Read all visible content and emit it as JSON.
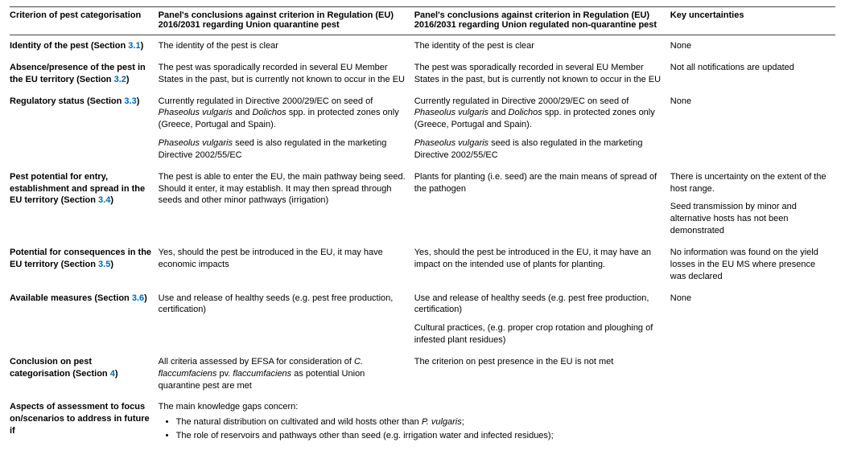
{
  "headers": {
    "c1": "Criterion of pest categorisation",
    "c2": "Panel's conclusions against criterion in Regulation (EU) 2016/2031 regarding Union quarantine pest",
    "c3": "Panel's conclusions against criterion in Regulation (EU) 2016/2031 regarding Union regulated non-quarantine pest",
    "c4": "Key uncertainties"
  },
  "rows": {
    "identity": {
      "label_a": "Identity of the pest (Section ",
      "sec": "3.1",
      "label_b": ")",
      "c2": "The identity of the pest is clear",
      "c3": "The identity of the pest is clear",
      "c4": "None"
    },
    "absence": {
      "label_a": "Absence/presence of the pest in the EU territory (Section ",
      "sec": "3.2",
      "label_b": ")",
      "c2": "The pest was sporadically recorded in several EU Member States in the past, but is currently not known to occur in the EU",
      "c3": "The pest was sporadically recorded in several EU Member States in the past, but is currently not known to occur in the EU",
      "c4": "Not all notifications are updated"
    },
    "regstatus": {
      "label_a": "Regulatory status (Section ",
      "sec": "3.3",
      "label_b": ")",
      "c2p1a": "Currently regulated in Directive 2000/29/EC on seed of ",
      "c2p1b": "Phaseolus vulgaris",
      "c2p1c": " and ",
      "c2p1d": "Dolichos",
      "c2p1e": " spp. in protected zones only (Greece, Portugal and Spain).",
      "c2p2a": "Phaseolus vulgaris",
      "c2p2b": " seed is also regulated in the marketing Directive 2002/55/EC",
      "c4": "None"
    },
    "potential": {
      "label_a": "Pest potential for entry, establishment and spread in the EU territory (Section ",
      "sec": "3.4",
      "label_b": ")",
      "c2": "The pest is able to enter the EU, the main pathway being seed. Should it enter, it may establish. It may then spread through seeds and other minor pathways (irrigation)",
      "c3": "Plants for planting (i.e. seed) are the main means of spread of the pathogen",
      "c4p1": "There is uncertainty on the extent of the host range.",
      "c4p2": "Seed transmission by minor and alternative hosts has not been demonstrated"
    },
    "consequences": {
      "label_a": "Potential for consequences in the EU territory (Section ",
      "sec": "3.5",
      "label_b": ")",
      "c2": "Yes, should the pest be introduced in the EU, it may have economic impacts",
      "c3": "Yes, should the pest be introduced in the EU, it may have an impact on the intended use of plants for planting.",
      "c4": "No information was found on the yield losses in the EU MS where presence was declared"
    },
    "measures": {
      "label_a": "Available measures (Section ",
      "sec": "3.6",
      "label_b": ")",
      "c2": "Use and release of healthy seeds (e.g. pest free production, certification)",
      "c3p1": "Use and release of healthy seeds (e.g. pest free production, certification)",
      "c3p2": "Cultural practices, (e.g. proper crop rotation and ploughing of infested plant residues)",
      "c4": "None"
    },
    "conclusion": {
      "label_a": "Conclusion on pest categorisation (Section ",
      "sec": "4",
      "label_b": ")",
      "c2a": "All criteria assessed by EFSA for consideration of ",
      "c2b": "C. flaccumfaciens",
      "c2c": " pv. ",
      "c2d": "flaccumfaciens",
      "c2e": " as potential Union quarantine pest are met",
      "c3": "The criterion on pest presence in the EU is not met",
      "c4": ""
    },
    "aspects": {
      "label": "Aspects of assessment to focus on/scenarios to address in future if",
      "intro": "The main knowledge gaps concern:",
      "b1a": "The natural distribution on cultivated and wild hosts other than ",
      "b1b": "P. vulgaris",
      "b1c": ";",
      "b2": "The role of reservoirs and pathways other than seed (e.g. irrigation water and infected residues);"
    }
  }
}
